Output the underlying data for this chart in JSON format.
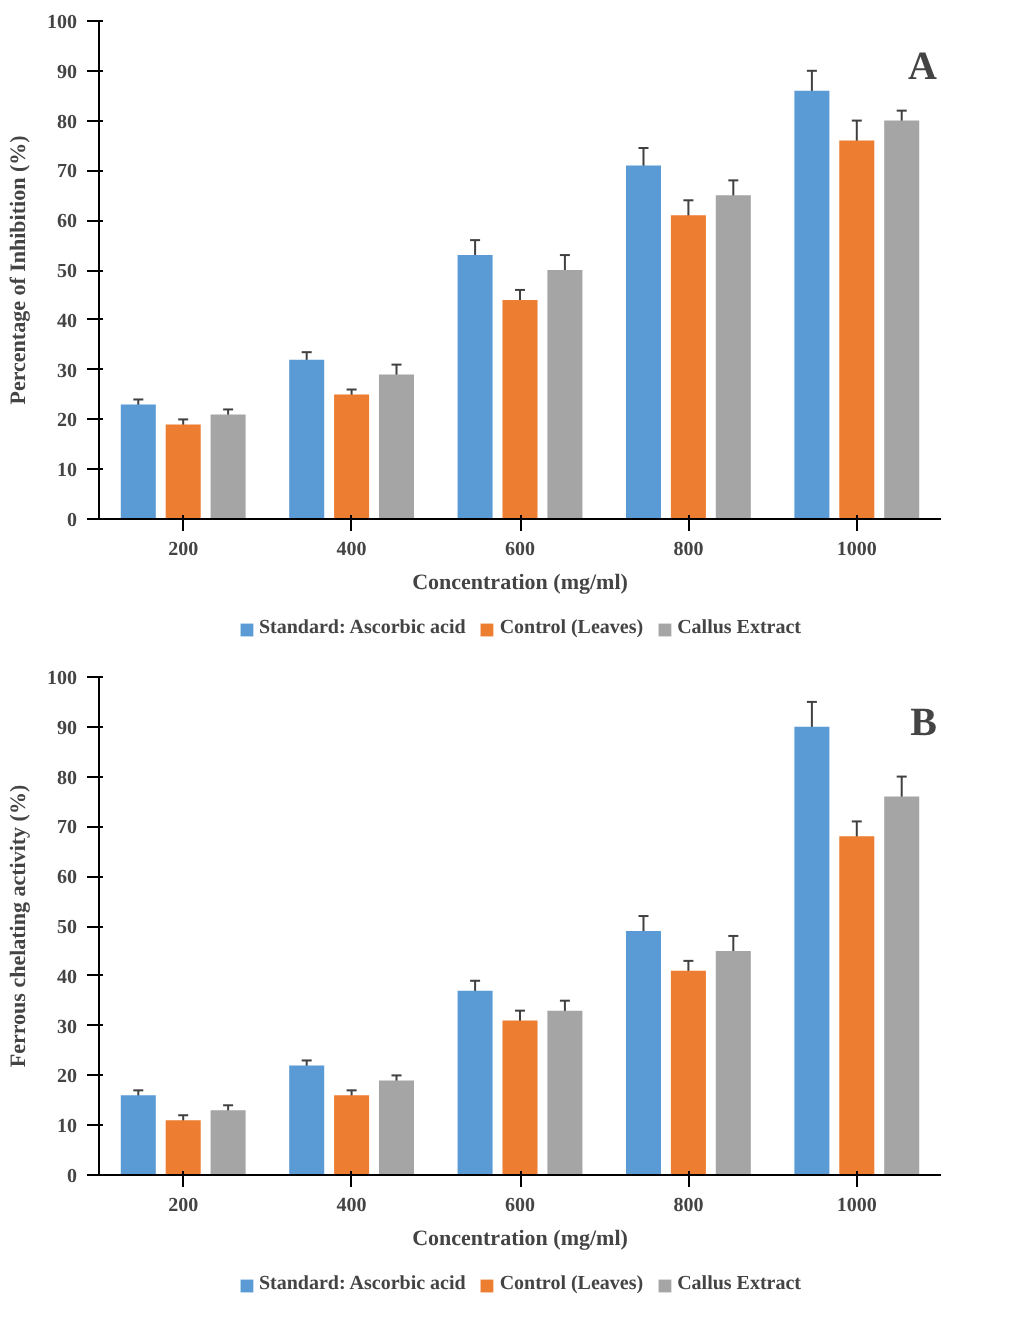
{
  "chart_data": [
    {
      "type": "bar",
      "annotations": [
        "A"
      ],
      "xlabel": "Concentration (mg/ml)",
      "ylabel": "Percentage of Inhibition (%)",
      "categories": [
        "200",
        "400",
        "600",
        "800",
        "1000"
      ],
      "ylim": [
        0,
        100
      ],
      "yticks": [
        0,
        10,
        20,
        30,
        40,
        50,
        60,
        70,
        80,
        90,
        100
      ],
      "grid": false,
      "legend": "bottom",
      "series": [
        {
          "name": "Standard: Ascorbic acid",
          "color": "#5b9bd5",
          "values": [
            23,
            32,
            53,
            71,
            86
          ],
          "errors": [
            1,
            1.5,
            3,
            3.5,
            4
          ]
        },
        {
          "name": "Control (Leaves)",
          "color": "#ed7d31",
          "values": [
            19,
            25,
            44,
            61,
            76
          ],
          "errors": [
            1,
            1,
            2,
            3,
            4
          ]
        },
        {
          "name": "Callus Extract",
          "color": "#a5a5a5",
          "values": [
            21,
            29,
            50,
            65,
            80
          ],
          "errors": [
            1,
            2,
            3,
            3,
            2
          ]
        }
      ]
    },
    {
      "type": "bar",
      "annotations": [
        "B"
      ],
      "xlabel": "Concentration (mg/ml)",
      "ylabel": "Ferrous chelating activity (%)",
      "categories": [
        "200",
        "400",
        "600",
        "800",
        "1000"
      ],
      "ylim": [
        0,
        100
      ],
      "yticks": [
        0,
        10,
        20,
        30,
        40,
        50,
        60,
        70,
        80,
        90,
        100
      ],
      "grid": false,
      "legend": "bottom",
      "series": [
        {
          "name": "Standard: Ascorbic acid",
          "color": "#5b9bd5",
          "values": [
            16,
            22,
            37,
            49,
            90
          ],
          "errors": [
            1,
            1,
            2,
            3,
            5
          ]
        },
        {
          "name": "Control (Leaves)",
          "color": "#ed7d31",
          "values": [
            11,
            16,
            31,
            41,
            68
          ],
          "errors": [
            1,
            1,
            2,
            2,
            3
          ]
        },
        {
          "name": "Callus Extract",
          "color": "#a5a5a5",
          "values": [
            13,
            19,
            33,
            45,
            76
          ],
          "errors": [
            1,
            1,
            2,
            3,
            4
          ]
        }
      ]
    }
  ]
}
